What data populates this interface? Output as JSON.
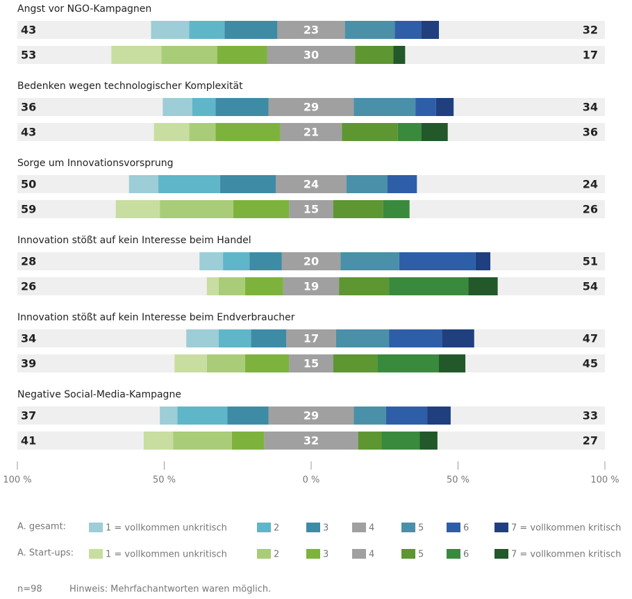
{
  "chart_data": {
    "type": "diverging_bar",
    "categories": [
      "Angst vor NGO-Kampagnen",
      "Bedenken wegen technologischer Komplexität",
      "Sorge um Innovationsvorsprung",
      "Innovation stößt auf kein Interesse beim Handel",
      "Innovation stößt auf kein Interesse beim Endverbraucher",
      "Negative Social-Media-Kampagne"
    ],
    "groups": [
      {
        "name": "A. gesamt:",
        "left_totals": [
          43,
          36,
          50,
          28,
          34,
          37
        ],
        "right_totals": [
          32,
          34,
          24,
          51,
          47,
          33
        ],
        "series": [
          {
            "name": "1 = vollkommen unkritisch",
            "color": "#9dcdd6",
            "values": [
              13,
              10,
              10,
              8,
              11,
              6
            ]
          },
          {
            "name": "2",
            "color": "#5fb6c8",
            "values": [
              12,
              8,
              21,
              9,
              11,
              17
            ]
          },
          {
            "name": "3",
            "color": "#3e8ba6",
            "values": [
              18,
              18,
              19,
              11,
              12,
              14
            ]
          },
          {
            "name": "4",
            "color": "#a0a0a0",
            "values": [
              23,
              29,
              24,
              20,
              17,
              29
            ]
          },
          {
            "name": "5",
            "color": "#4a90a8",
            "values": [
              17,
              21,
              14,
              20,
              18,
              11
            ]
          },
          {
            "name": "6",
            "color": "#2f5ea8",
            "values": [
              9,
              7,
              10,
              26,
              18,
              14
            ]
          },
          {
            "name": "7 = vollkommen kritisch",
            "color": "#1f3f7f",
            "values": [
              6,
              6,
              0,
              5,
              11,
              8
            ]
          }
        ]
      },
      {
        "name": "A. Start-ups:",
        "left_totals": [
          53,
          43,
          59,
          26,
          39,
          41
        ],
        "right_totals": [
          17,
          36,
          26,
          54,
          45,
          27
        ],
        "series": [
          {
            "name": "1 = vollkommen unkritisch",
            "color": "#c8dea0",
            "values": [
              17,
              12,
              15,
              4,
              11,
              10
            ]
          },
          {
            "name": "2",
            "color": "#a9cc78",
            "values": [
              19,
              9,
              25,
              9,
              13,
              20
            ]
          },
          {
            "name": "3",
            "color": "#7db33c",
            "values": [
              17,
              22,
              19,
              13,
              15,
              11
            ]
          },
          {
            "name": "4",
            "color": "#a0a0a0",
            "values": [
              30,
              21,
              15,
              19,
              15,
              32
            ]
          },
          {
            "name": "5",
            "color": "#5e9632",
            "values": [
              13,
              19,
              17,
              17,
              15,
              8
            ]
          },
          {
            "name": "6",
            "color": "#3a8a3e",
            "values": [
              0,
              8,
              9,
              27,
              21,
              13
            ]
          },
          {
            "name": "7 = vollkommen kritisch",
            "color": "#22582a",
            "values": [
              4,
              9,
              0,
              10,
              9,
              6
            ]
          }
        ]
      }
    ],
    "xlim": [
      -100,
      100
    ],
    "xticks": [
      {
        "value": -100,
        "label": "100 %"
      },
      {
        "value": -50,
        "label": "50 %"
      },
      {
        "value": 0,
        "label": "0 %"
      },
      {
        "value": 50,
        "label": "50 %"
      },
      {
        "value": 100,
        "label": "100 %"
      }
    ],
    "note": "n=98",
    "hint": "Hinweis: Mehrfachantworten waren möglich."
  }
}
